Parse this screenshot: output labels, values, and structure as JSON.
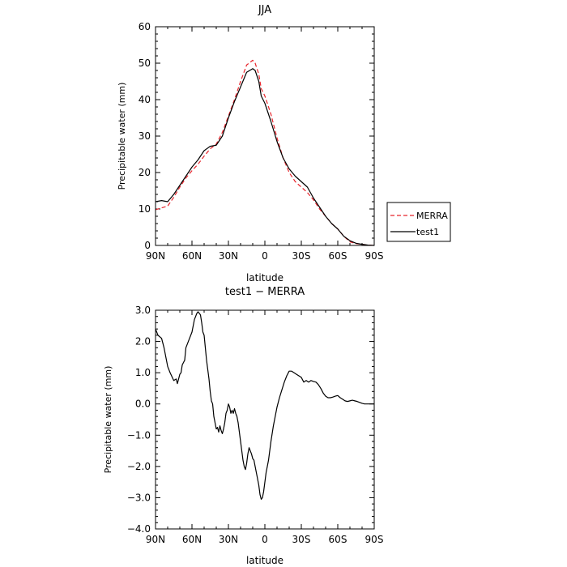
{
  "chart_data": [
    {
      "type": "line",
      "title": "JJA",
      "xlabel": "latitude",
      "ylabel": "Precipitable water  (mm)",
      "xlim": [
        90,
        -90
      ],
      "ylim": [
        0,
        60
      ],
      "x_ticks": [
        90,
        60,
        30,
        0,
        -30,
        -60,
        -90
      ],
      "x_tick_labels": [
        "90N",
        "60N",
        "30N",
        "0",
        "30S",
        "60S",
        "90S"
      ],
      "y_ticks": [
        0,
        10,
        20,
        30,
        40,
        50,
        60
      ],
      "y_tick_labels": [
        "0",
        "10",
        "20",
        "30",
        "40",
        "50",
        "60"
      ],
      "legend_position": "right",
      "series": [
        {
          "name": "MERRA",
          "color": "#e8242b",
          "style": "dashed",
          "x": [
            90,
            85,
            80,
            75,
            70,
            65,
            60,
            55,
            50,
            45,
            40,
            35,
            30,
            25,
            20,
            15,
            10,
            8,
            5,
            3,
            0,
            -5,
            -10,
            -15,
            -20,
            -25,
            -30,
            -35,
            -40,
            -45,
            -50,
            -55,
            -60,
            -65,
            -70,
            -75,
            -80,
            -85,
            -90
          ],
          "y": [
            9.8,
            10.3,
            10.8,
            13.2,
            16.0,
            18.5,
            20.5,
            22.3,
            24.5,
            26.5,
            27.8,
            31.0,
            35.5,
            40.0,
            45.0,
            49.5,
            50.8,
            50.0,
            47.0,
            43.0,
            41.0,
            36.0,
            29.5,
            24.0,
            20.0,
            17.5,
            16.0,
            14.5,
            12.5,
            10.0,
            8.0,
            6.0,
            4.5,
            2.5,
            1.0,
            0.5,
            0.3,
            0.1,
            0.0
          ]
        },
        {
          "name": "test1",
          "color": "#000000",
          "style": "solid",
          "x": [
            90,
            85,
            80,
            75,
            70,
            65,
            60,
            55,
            50,
            45,
            40,
            35,
            30,
            25,
            20,
            15,
            10,
            8,
            5,
            3,
            0,
            -5,
            -10,
            -15,
            -20,
            -25,
            -30,
            -35,
            -40,
            -45,
            -50,
            -55,
            -60,
            -65,
            -70,
            -75,
            -80,
            -85,
            -90
          ],
          "y": [
            12.0,
            12.3,
            12.0,
            14.0,
            16.5,
            19.0,
            21.5,
            23.5,
            26.0,
            27.2,
            27.5,
            30.0,
            35.0,
            39.5,
            43.5,
            47.5,
            48.5,
            48.0,
            45.0,
            41.0,
            39.0,
            34.0,
            28.5,
            24.0,
            21.0,
            19.0,
            17.5,
            16.0,
            13.0,
            10.5,
            8.0,
            6.0,
            4.5,
            2.5,
            1.3,
            0.6,
            0.3,
            0.1,
            0.0
          ]
        }
      ]
    },
    {
      "type": "line",
      "title": "test1 − MERRA",
      "xlabel": "latitude",
      "ylabel": "Precipitable water  (mm)",
      "xlim": [
        90,
        -90
      ],
      "ylim": [
        -4,
        3
      ],
      "x_ticks": [
        90,
        60,
        30,
        0,
        -30,
        -60,
        -90
      ],
      "x_tick_labels": [
        "90N",
        "60N",
        "30N",
        "0",
        "30S",
        "60S",
        "90S"
      ],
      "y_ticks": [
        -4,
        -3,
        -2,
        -1,
        0,
        1,
        2,
        3
      ],
      "y_tick_labels": [
        "−4.0",
        "−3.0",
        "−2.0",
        "−1.0",
        "0.0",
        "1.0",
        "2.0",
        "3.0"
      ],
      "series": [
        {
          "name": "",
          "color": "#000000",
          "style": "solid",
          "x": [
            90,
            88,
            85,
            83,
            80,
            78,
            75,
            73,
            72,
            70,
            69,
            68,
            66,
            65,
            63,
            60,
            58,
            56,
            55,
            53,
            52,
            51,
            50,
            49,
            48,
            46,
            45,
            44,
            43,
            42,
            41,
            40,
            39,
            38,
            37,
            36,
            35,
            34,
            33,
            32,
            31,
            30,
            29,
            28,
            27,
            26,
            25,
            24,
            23,
            22,
            21,
            20,
            19,
            18,
            17,
            16,
            15,
            14,
            13,
            12,
            11,
            10,
            9,
            8,
            7,
            6,
            5,
            4,
            3,
            2,
            1,
            0,
            -1,
            -2,
            -3,
            -4,
            -5,
            -6,
            -7,
            -8,
            -9,
            -10,
            -12,
            -14,
            -16,
            -18,
            -20,
            -22,
            -24,
            -26,
            -28,
            -30,
            -32,
            -34,
            -36,
            -38,
            -40,
            -42,
            -44,
            -46,
            -48,
            -50,
            -52,
            -54,
            -56,
            -58,
            -60,
            -62,
            -64,
            -66,
            -68,
            -70,
            -72,
            -74,
            -76,
            -78,
            -80,
            -82,
            -84,
            -86,
            -88,
            -90
          ],
          "y": [
            2.4,
            2.2,
            2.1,
            1.8,
            1.2,
            1.0,
            0.75,
            0.8,
            0.65,
            0.95,
            1.0,
            1.25,
            1.4,
            1.8,
            2.0,
            2.3,
            2.7,
            2.9,
            2.95,
            2.85,
            2.6,
            2.3,
            2.2,
            1.8,
            1.4,
            0.8,
            0.4,
            0.1,
            0.0,
            -0.4,
            -0.6,
            -0.8,
            -0.75,
            -0.9,
            -0.7,
            -0.85,
            -0.95,
            -0.8,
            -0.6,
            -0.3,
            -0.2,
            0.0,
            -0.1,
            -0.3,
            -0.2,
            -0.3,
            -0.15,
            -0.3,
            -0.4,
            -0.6,
            -0.9,
            -1.2,
            -1.5,
            -1.8,
            -2.0,
            -2.1,
            -1.9,
            -1.6,
            -1.4,
            -1.5,
            -1.6,
            -1.75,
            -1.8,
            -2.0,
            -2.2,
            -2.4,
            -2.6,
            -2.9,
            -3.05,
            -3.0,
            -2.8,
            -2.5,
            -2.2,
            -2.0,
            -1.8,
            -1.5,
            -1.2,
            -0.95,
            -0.7,
            -0.5,
            -0.3,
            -0.1,
            0.2,
            0.45,
            0.7,
            0.9,
            1.05,
            1.05,
            1.0,
            0.95,
            0.9,
            0.85,
            0.7,
            0.75,
            0.7,
            0.75,
            0.72,
            0.7,
            0.62,
            0.5,
            0.35,
            0.25,
            0.2,
            0.2,
            0.22,
            0.25,
            0.27,
            0.2,
            0.15,
            0.1,
            0.08,
            0.1,
            0.12,
            0.1,
            0.08,
            0.05,
            0.02,
            0.0,
            0.0,
            0.0,
            0.0,
            0.0
          ]
        }
      ]
    }
  ]
}
